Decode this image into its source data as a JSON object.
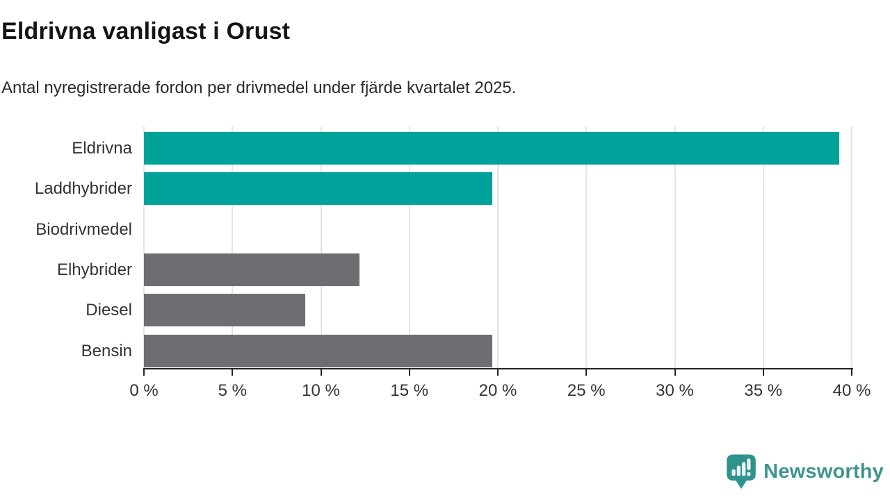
{
  "header": {
    "title": "Eldrivna vanligast i Orust",
    "subtitle": "Antal nyregistrerade fordon per drivmedel under fjärde kvartalet 2025."
  },
  "chart_data": {
    "type": "bar",
    "orientation": "horizontal",
    "title": "Eldrivna vanligast i Orust",
    "subtitle": "Antal nyregistrerade fordon per drivmedel under fjärde kvartalet 2025.",
    "categories": [
      "Eldrivna",
      "Laddhybrider",
      "Biodrivmedel",
      "Elhybrider",
      "Diesel",
      "Bensin"
    ],
    "values": [
      39.3,
      19.7,
      0,
      12.2,
      9.1,
      19.7
    ],
    "unit": "%",
    "xlim": [
      0,
      40
    ],
    "xticks": [
      0,
      5,
      10,
      15,
      20,
      25,
      30,
      35,
      40
    ],
    "xtick_labels": [
      "0 %",
      "5 %",
      "10 %",
      "15 %",
      "20 %",
      "25 %",
      "30 %",
      "35 %",
      "40 %"
    ],
    "bar_colors": [
      "#00a29a",
      "#00a29a",
      "#00a29a",
      "#6d6d72",
      "#6d6d72",
      "#6d6d72"
    ],
    "grid": "vertical",
    "legend": "none"
  },
  "colors": {
    "teal": "#00a29a",
    "gray": "#6d6d72",
    "gridline": "#e4e4e4",
    "axis": "#222426",
    "logo_teal": "#3e948e",
    "logo_icon_fill": "#2e938d"
  },
  "footer": {
    "logo_text": "Newsworthy"
  }
}
